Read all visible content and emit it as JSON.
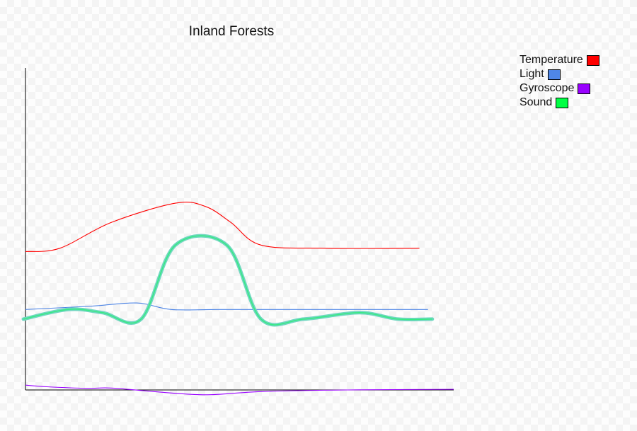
{
  "chart_data": {
    "type": "line",
    "title": "Inland Forests",
    "xlabel": "",
    "ylabel": "",
    "xlim": [
      0,
      100
    ],
    "ylim": [
      0,
      100
    ],
    "x_ticks": false,
    "y_ticks": false,
    "grid": false,
    "legend_position": "top-right",
    "series": [
      {
        "name": "Temperature",
        "color": "#ff0000",
        "style": "thin",
        "points": [
          [
            0,
            43
          ],
          [
            8,
            44
          ],
          [
            20,
            52
          ],
          [
            35,
            58
          ],
          [
            42,
            57
          ],
          [
            48,
            52
          ],
          [
            55,
            45
          ],
          [
            70,
            44
          ],
          [
            92,
            44
          ]
        ]
      },
      {
        "name": "Light",
        "color": "#4f86e6",
        "style": "thin",
        "points": [
          [
            0,
            25
          ],
          [
            15,
            26
          ],
          [
            26,
            27
          ],
          [
            34,
            25
          ],
          [
            45,
            25
          ],
          [
            60,
            25
          ],
          [
            94,
            25
          ]
        ]
      },
      {
        "name": "Gyroscope",
        "color": "#9900ff",
        "style": "thin",
        "points": [
          [
            0,
            1.5
          ],
          [
            5,
            1
          ],
          [
            14,
            0.5
          ],
          [
            20,
            0.6
          ],
          [
            30,
            -0.5
          ],
          [
            42,
            -1.5
          ],
          [
            55,
            -0.5
          ],
          [
            75,
            0
          ],
          [
            100,
            0.2
          ]
        ]
      },
      {
        "name": "Sound",
        "color": "#00ff44",
        "style": "thick-glow",
        "points": [
          [
            -0.5,
            22
          ],
          [
            10,
            25
          ],
          [
            18,
            24
          ],
          [
            27,
            22
          ],
          [
            35,
            45
          ],
          [
            47,
            45
          ],
          [
            55,
            22
          ],
          [
            65,
            22
          ],
          [
            78,
            24
          ],
          [
            87,
            22
          ],
          [
            95,
            22
          ]
        ]
      }
    ]
  }
}
